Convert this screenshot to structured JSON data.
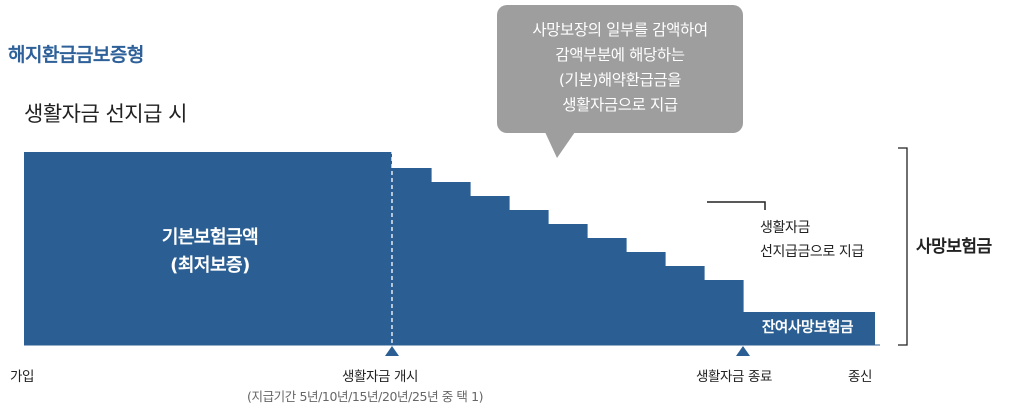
{
  "header": {
    "type_title": "해지환급금보증형",
    "scenario_title": "생활자금 선지급 시"
  },
  "callout": {
    "text": "사망보장의 일부를 감액하여\n감액부분에 해당하는\n(기본)해약환급금을\n생활자금으로 지급"
  },
  "diagram": {
    "basic_amount_label": "기본보험금액\n(최저보증)",
    "remaining_label": "잔여사망보험금",
    "advance_label": "생활자금\n선지급금으로 지급",
    "death_benefit_label": "사망보험금",
    "step_count": 9,
    "colors": {
      "bar": "#2b5f93",
      "callout": "#9e9e9e",
      "title": "#2e6199"
    }
  },
  "axis": {
    "join": "가입",
    "payment_start": "생활자금 개시",
    "payment_end": "생활자금 종료",
    "death": "종신",
    "payment_period_note": "(지급기간 5년/10년/15년/20년/25년 중 택 1)"
  }
}
